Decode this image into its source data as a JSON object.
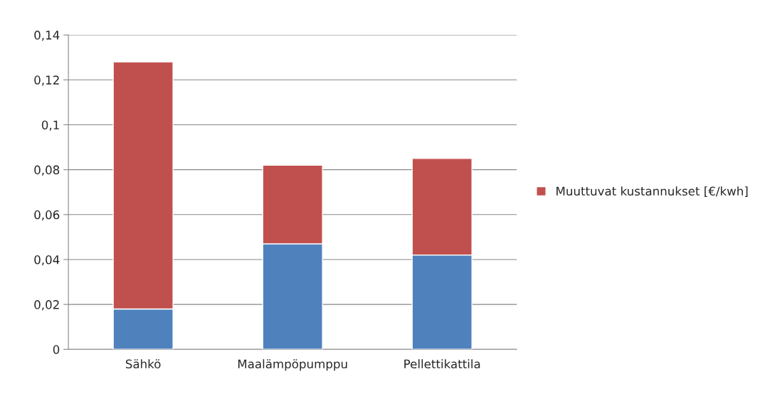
{
  "chart_data": {
    "type": "bar",
    "stacked": true,
    "categories": [
      "Sähkö",
      "Maalämpöpumppu",
      "Pellettikattila"
    ],
    "series": [
      {
        "color": "#4f81bd",
        "values": [
          0.018,
          0.047,
          0.042
        ]
      },
      {
        "name": "Muuttuvat kustannukset [€/kwh]",
        "color": "#c0504d",
        "values": [
          0.11,
          0.035,
          0.043
        ]
      }
    ],
    "ylim": [
      0,
      0.14
    ],
    "yticks": [
      0,
      {
        "value": 0.02,
        "label": "0,02"
      },
      {
        "value": 0.04,
        "label": "0,04"
      },
      {
        "value": 0.06,
        "label": "0,06"
      },
      {
        "value": 0.08,
        "label": "0,08"
      },
      {
        "value": 0.1,
        "label": "0,1"
      },
      {
        "value": 0.12,
        "label": "0,12"
      },
      {
        "value": 0.14,
        "label": "0,14"
      }
    ],
    "grid": "y",
    "legend": "right"
  }
}
